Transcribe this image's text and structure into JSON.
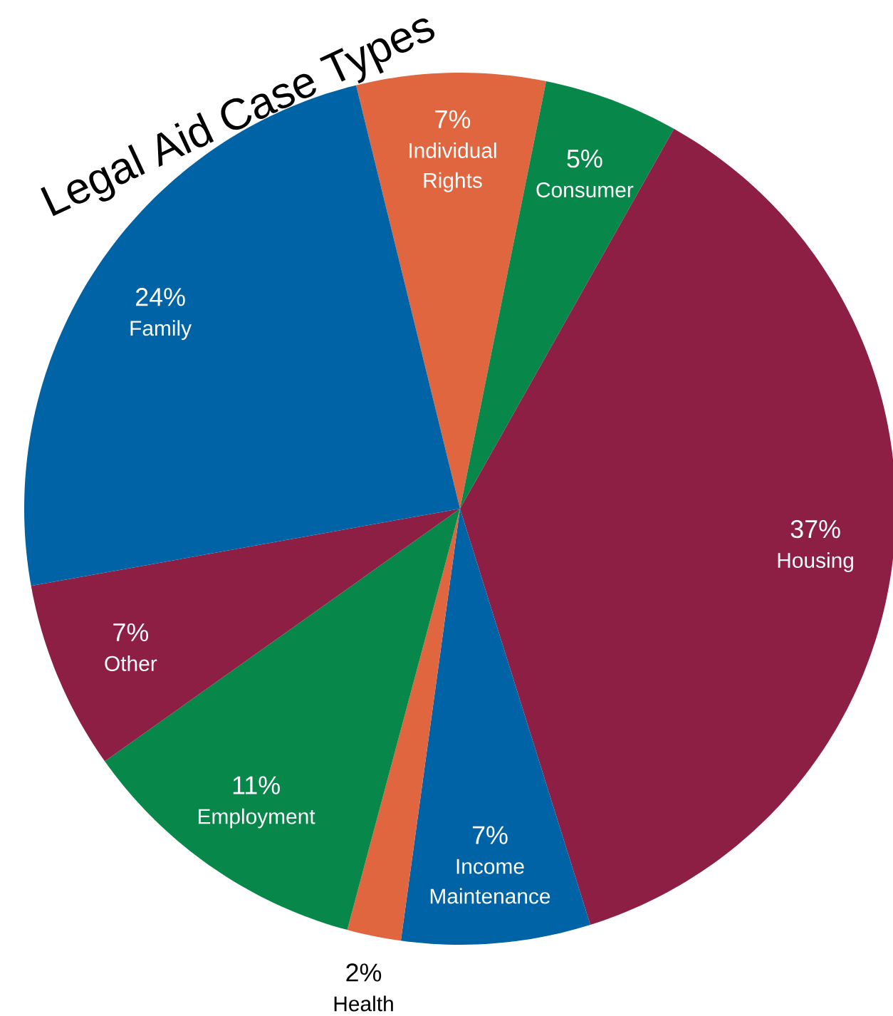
{
  "chart_data": {
    "type": "pie",
    "title": "Legal Aid Case Types",
    "categories": [
      "Individual Rights",
      "Consumer",
      "Housing",
      "Income Maintenance",
      "Health",
      "Employment",
      "Other",
      "Family"
    ],
    "values": [
      7,
      5,
      37,
      7,
      2,
      11,
      7,
      24
    ],
    "value_labels": [
      "7%",
      "5%",
      "37%",
      "7%",
      "2%",
      "11%",
      "7%",
      "24%"
    ],
    "colors": [
      "#e06640",
      "#07874a",
      "#8c1f43",
      "#0063a6",
      "#e06640",
      "#07874a",
      "#8c1f43",
      "#0063a6"
    ],
    "legend": false
  }
}
